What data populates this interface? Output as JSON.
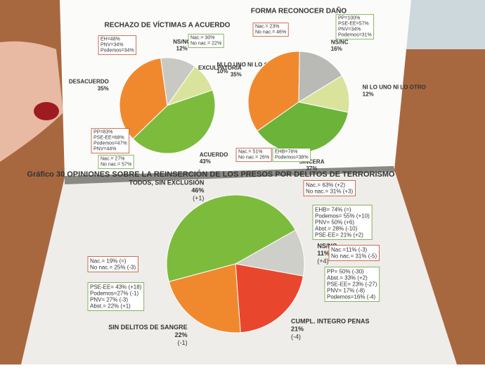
{
  "chart_data": [
    {
      "type": "pie",
      "title": "RECHAZO DE VÍCTIMAS A ACUERDO",
      "categories": [
        "NS/NC",
        "NI LO UNO NI LO OTRO",
        "ACUERDO",
        "DESACUERDO"
      ],
      "values": [
        12,
        10,
        43,
        35
      ],
      "value_labels": [
        "12%",
        "10%",
        "43%",
        "35%"
      ],
      "colors": [
        "#c9c9c4",
        "#d9e39c",
        "#7dbb3c",
        "#f0892e"
      ],
      "annotations": [
        [
          "EH=48%",
          "PNV=34%",
          "Podemos=34%"
        ],
        [
          "Nac.= 30%",
          "No nac.= 22%"
        ],
        [
          "PP=83%",
          "PSE-EE=68%",
          "Podemos=47%",
          "PNV=44%"
        ],
        [
          "Nac.= 27%",
          "No nac.= 57%"
        ]
      ]
    },
    {
      "type": "pie",
      "title": "FORMA RECONOCER DAÑO",
      "categories": [
        "EXCULPATORIA",
        "NS/NC",
        "NI LO UNO NI LO OTRO",
        "SINCERA"
      ],
      "values": [
        35,
        16,
        12,
        37
      ],
      "value_labels": [
        "35%",
        "16%",
        "12%",
        "37%"
      ],
      "colors": [
        "#f0892e",
        "#b9b9b5",
        "#d9e39c",
        "#6cb33a"
      ],
      "annotations": [
        [
          "Nac.= 23%",
          "No nac.= 46%"
        ],
        [
          "PP=100%",
          "PSE-EE=57%",
          "PNV=34%",
          "Podemos=31%"
        ],
        [
          "Nac.= 51%",
          "No nac.= 26%"
        ],
        [
          "EHB=76%",
          "Podemos=38%"
        ]
      ]
    },
    {
      "type": "pie",
      "title": "Gráfico 30 OPINIONES SOBRE LA REINSERCIÓN DE LOS PRESOS POR DELITOS DE TERRORISMO",
      "categories": [
        "TODOS, SIN EXCLUSIÓN",
        "NS/NC",
        "CUMPL. INTEGRO PENAS",
        "SIN DELITOS DE SANGRE"
      ],
      "values": [
        46,
        11,
        21,
        22
      ],
      "value_labels": [
        "46%",
        "11%",
        "21%",
        "22%"
      ],
      "changes": [
        "(+1)",
        "(+4)",
        "(-4)",
        "(-1)"
      ],
      "colors": [
        "#7dbb3c",
        "#cfcfca",
        "#e8472e",
        "#f0892e"
      ],
      "annotations": [
        [
          "Nac.= 63% (+2)",
          "No nac.= 31% (+3)"
        ],
        [
          "EHB= 74% (=)",
          "Podemos= 55% (+10)",
          "PNV= 50% (+6)",
          "Abst.= 28% (-10)",
          "PSE-EE= 21% (+2)"
        ],
        [
          "Nac.=11% (-3)",
          "No nac.= 31% (-5)"
        ],
        [
          "PP= 50% (-30)",
          "Abst.= 33% (+2)",
          "PSE-EE= 23% (-27)",
          "PNV= 17% (-8)",
          "Podemos=16% (-4)"
        ],
        [
          "Nac.= 19% (=)",
          "No nac.= 25% (-3)"
        ],
        [
          "PSE-EE= 43% (+18)",
          "Podemos=27% (-1)",
          "PNV= 27% (-3)",
          "Abst.= 22% (+1)"
        ]
      ]
    }
  ]
}
